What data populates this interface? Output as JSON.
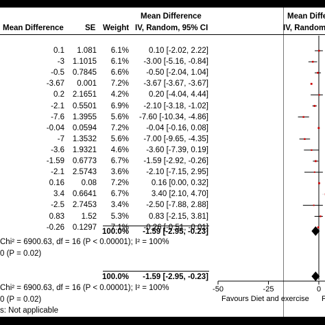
{
  "headers": {
    "mean_difference": "Mean Difference",
    "se": "SE",
    "weight": "Weight",
    "md_top": "Mean Difference",
    "md_method": "IV, Random, 95% CI",
    "plot_top": "Mean Differ",
    "plot_method": "IV, Random"
  },
  "rows": [
    {
      "md": "0.1",
      "se": "1.081",
      "weight": "6.1%",
      "ci": "0.10 [-2.02, 2.22]"
    },
    {
      "md": "-3",
      "se": "1.1015",
      "weight": "6.1%",
      "ci": "-3.00 [-5.16, -0.84]"
    },
    {
      "md": "-0.5",
      "se": "0.7845",
      "weight": "6.6%",
      "ci": "-0.50 [-2.04, 1.04]"
    },
    {
      "md": "-3.67",
      "se": "0.001",
      "weight": "7.2%",
      "ci": "-3.67 [-3.67, -3.67]"
    },
    {
      "md": "0.2",
      "se": "2.1651",
      "weight": "4.2%",
      "ci": "0.20 [-4.04, 4.44]"
    },
    {
      "md": "-2.1",
      "se": "0.5501",
      "weight": "6.9%",
      "ci": "-2.10 [-3.18, -1.02]"
    },
    {
      "md": "-7.6",
      "se": "1.3955",
      "weight": "5.6%",
      "ci": "-7.60 [-10.34, -4.86]"
    },
    {
      "md": "-0.04",
      "se": "0.0594",
      "weight": "7.2%",
      "ci": "-0.04 [-0.16, 0.08]"
    },
    {
      "md": "-7",
      "se": "1.3532",
      "weight": "5.6%",
      "ci": "-7.00 [-9.65, -4.35]"
    },
    {
      "md": "-3.6",
      "se": "1.9321",
      "weight": "4.6%",
      "ci": "-3.60 [-7.39, 0.19]"
    },
    {
      "md": "-1.59",
      "se": "0.6773",
      "weight": "6.7%",
      "ci": "-1.59 [-2.92, -0.26]"
    },
    {
      "md": "-2.1",
      "se": "2.5743",
      "weight": "3.6%",
      "ci": "-2.10 [-7.15, 2.95]"
    },
    {
      "md": "0.16",
      "se": "0.08",
      "weight": "7.2%",
      "ci": "0.16 [0.00, 0.32]"
    },
    {
      "md": "3.4",
      "se": "0.6641",
      "weight": "6.7%",
      "ci": "3.40 [2.10, 4.70]"
    },
    {
      "md": "-2.5",
      "se": "2.7453",
      "weight": "3.4%",
      "ci": "-2.50 [-7.88, 2.88]"
    },
    {
      "md": "0.83",
      "se": "1.52",
      "weight": "5.3%",
      "ci": "0.83 [-2.15, 3.81]"
    },
    {
      "md": "-0.26",
      "se": "0.1297",
      "weight": "7.1%",
      "ci": "-0.26 [-0.51, -0.01]"
    }
  ],
  "subtotal": {
    "weight": "100.0%",
    "ci": "-1.59 [-2.95, -0.23]"
  },
  "heterogeneity_1": "Chi² = 6900.63, df = 16 (P < 0.00001); I² = 100%",
  "overall_effect_1": "0 (P = 0.02)",
  "total": {
    "weight": "100.0%",
    "ci": "-1.59 [-2.95, -0.23]"
  },
  "heterogeneity_2": "Chi² = 6900.63, df = 16 (P < 0.00001); I² = 100%",
  "overall_effect_2": "0 (P = 0.02)",
  "subgroup_note": "s: Not applicable",
  "axis": {
    "ticks": [
      "-50",
      "-25",
      "0"
    ],
    "favours_left": "Favours Diet and exercise",
    "favours_right_fragment": "F"
  },
  "colors": {
    "point": "#cc0000",
    "line": "#000000",
    "diamond": "#000000"
  },
  "chart_data": {
    "type": "forest",
    "x_range": [
      -50,
      0
    ],
    "x_ticks": [
      -50,
      -25,
      0
    ],
    "reference_line": 0,
    "xlabel_left": "Favours Diet and exercise",
    "studies": [
      {
        "md": 0.1,
        "lo": -2.02,
        "hi": 2.22,
        "weight": 6.1
      },
      {
        "md": -3.0,
        "lo": -5.16,
        "hi": -0.84,
        "weight": 6.1
      },
      {
        "md": -0.5,
        "lo": -2.04,
        "hi": 1.04,
        "weight": 6.6
      },
      {
        "md": -3.67,
        "lo": -3.67,
        "hi": -3.67,
        "weight": 7.2
      },
      {
        "md": 0.2,
        "lo": -4.04,
        "hi": 4.44,
        "weight": 4.2
      },
      {
        "md": -2.1,
        "lo": -3.18,
        "hi": -1.02,
        "weight": 6.9
      },
      {
        "md": -7.6,
        "lo": -10.34,
        "hi": -4.86,
        "weight": 5.6
      },
      {
        "md": -0.04,
        "lo": -0.16,
        "hi": 0.08,
        "weight": 7.2
      },
      {
        "md": -7.0,
        "lo": -9.65,
        "hi": -4.35,
        "weight": 5.6
      },
      {
        "md": -3.6,
        "lo": -7.39,
        "hi": 0.19,
        "weight": 4.6
      },
      {
        "md": -1.59,
        "lo": -2.92,
        "hi": -0.26,
        "weight": 6.7
      },
      {
        "md": -2.1,
        "lo": -7.15,
        "hi": 2.95,
        "weight": 3.6
      },
      {
        "md": 0.16,
        "lo": 0.0,
        "hi": 0.32,
        "weight": 7.2
      },
      {
        "md": 3.4,
        "lo": 2.1,
        "hi": 4.7,
        "weight": 6.7
      },
      {
        "md": -2.5,
        "lo": -7.88,
        "hi": 2.88,
        "weight": 3.4
      },
      {
        "md": 0.83,
        "lo": -2.15,
        "hi": 3.81,
        "weight": 5.3
      },
      {
        "md": -0.26,
        "lo": -0.51,
        "hi": -0.01,
        "weight": 7.1
      }
    ],
    "pooled": [
      {
        "md": -1.59,
        "lo": -2.95,
        "hi": -0.23
      },
      {
        "md": -1.59,
        "lo": -2.95,
        "hi": -0.23
      }
    ]
  }
}
